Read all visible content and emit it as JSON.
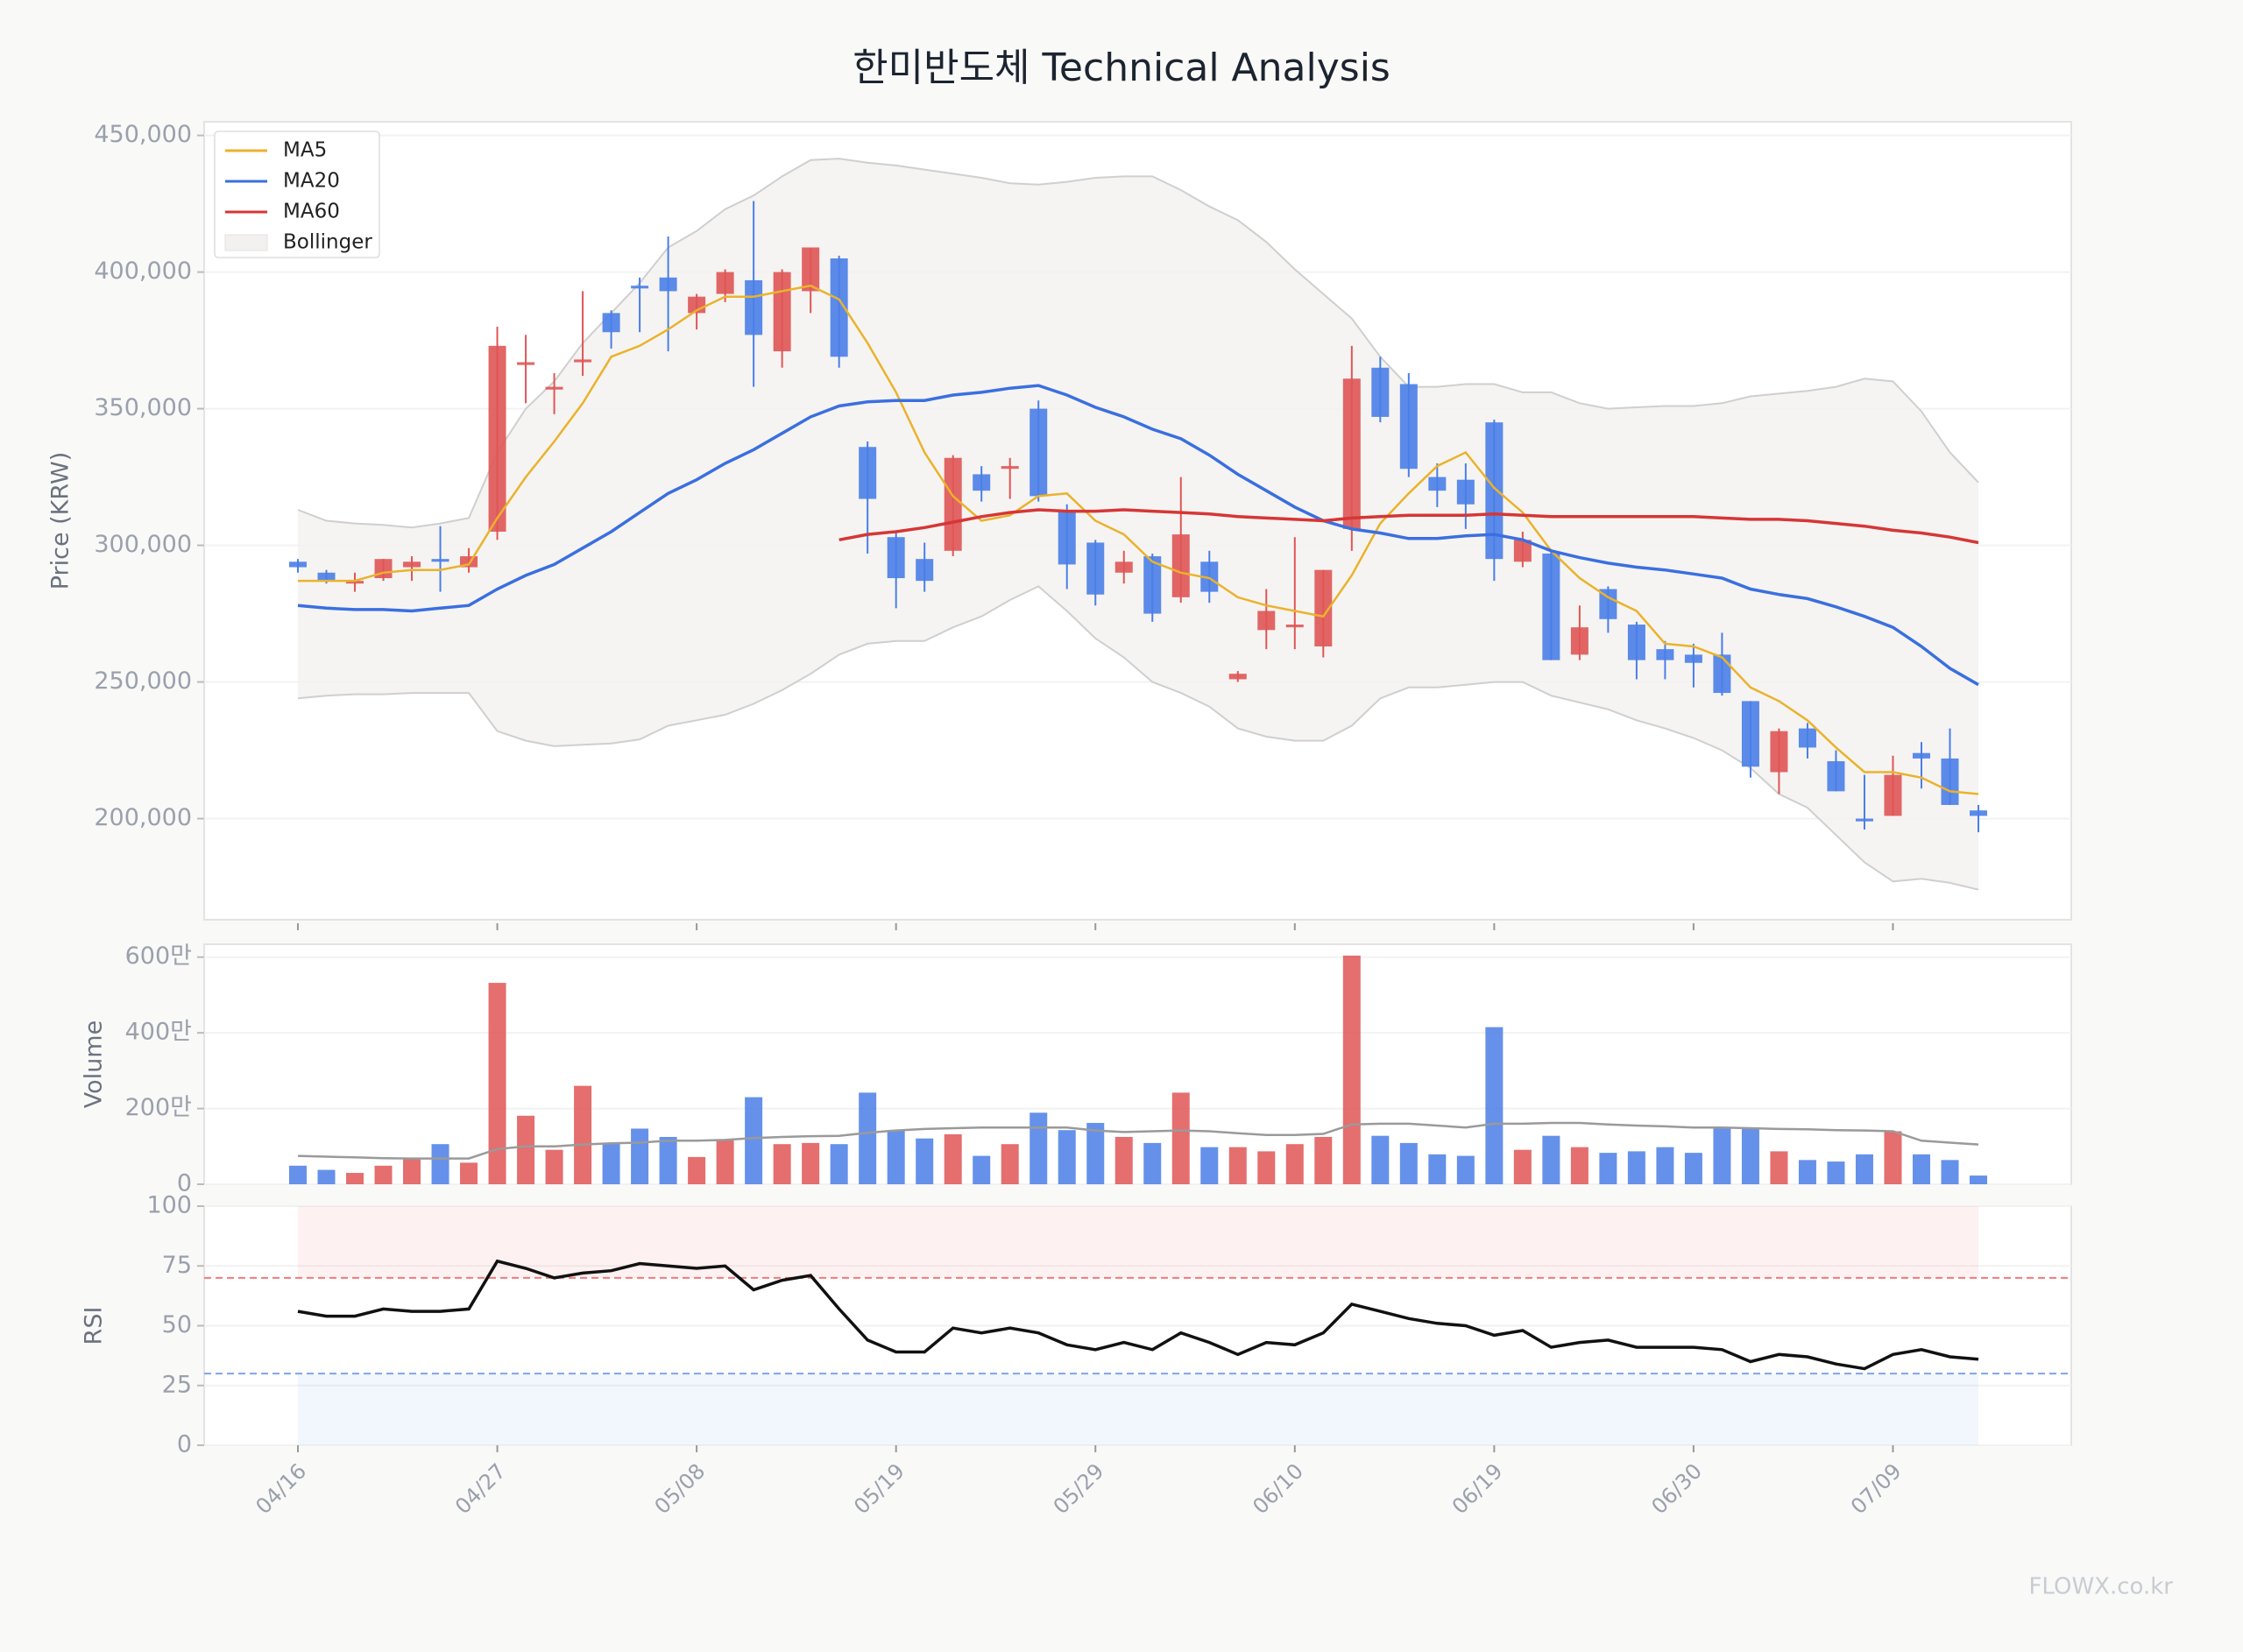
{
  "watermark": "FLOWX.co.kr",
  "chart_data": [
    {
      "type": "candlestick",
      "title": "한미반도체 Technical Analysis",
      "y_label": "Price (KRW)",
      "categories": [
        "04/16",
        null,
        null,
        null,
        null,
        null,
        null,
        "04/27",
        null,
        null,
        null,
        null,
        null,
        null,
        "05/08",
        null,
        null,
        null,
        null,
        null,
        null,
        "05/19",
        null,
        null,
        null,
        null,
        null,
        null,
        "05/29",
        null,
        null,
        null,
        null,
        null,
        null,
        "06/10",
        null,
        null,
        null,
        null,
        null,
        null,
        "06/19",
        null,
        null,
        null,
        null,
        null,
        null,
        "06/30",
        null,
        null,
        null,
        null,
        null,
        null,
        "07/09",
        null,
        null,
        null
      ],
      "open": [
        294000,
        290000,
        286000,
        288000,
        292000,
        295000,
        292000,
        305000,
        366000,
        357000,
        367000,
        385000,
        395000,
        398000,
        385000,
        392000,
        397000,
        371000,
        393000,
        405000,
        336000,
        303000,
        295000,
        298000,
        326000,
        328000,
        350000,
        313000,
        301000,
        290000,
        296000,
        281000,
        294000,
        251000,
        269000,
        270000,
        263000,
        306000,
        365000,
        359000,
        325000,
        324000,
        345000,
        294000,
        297000,
        260000,
        284000,
        271000,
        262000,
        260000,
        260000,
        243000,
        217000,
        233000,
        221000,
        200000,
        201000,
        224000,
        222000,
        203000
      ],
      "close": [
        292000,
        287000,
        287000,
        295000,
        294000,
        294000,
        296000,
        373000,
        367000,
        358000,
        368000,
        378000,
        394000,
        393000,
        391000,
        400000,
        377000,
        400000,
        409000,
        369000,
        317000,
        288000,
        287000,
        332000,
        320000,
        329000,
        318000,
        293000,
        282000,
        294000,
        275000,
        304000,
        283000,
        253000,
        276000,
        271000,
        291000,
        361000,
        347000,
        328000,
        320000,
        315000,
        295000,
        302000,
        258000,
        270000,
        273000,
        258000,
        258000,
        257000,
        246000,
        219000,
        232000,
        226000,
        210000,
        199000,
        216000,
        222000,
        205000,
        201000
      ],
      "high": [
        295000,
        291000,
        290000,
        295000,
        296000,
        307000,
        299000,
        380000,
        377000,
        363000,
        393000,
        386000,
        398000,
        413000,
        392000,
        401000,
        426000,
        401000,
        409000,
        406000,
        338000,
        305000,
        301000,
        333000,
        329000,
        332000,
        353000,
        315000,
        302000,
        298000,
        297000,
        325000,
        298000,
        254000,
        284000,
        303000,
        291000,
        373000,
        369000,
        363000,
        330000,
        330000,
        346000,
        305000,
        298000,
        278000,
        285000,
        272000,
        265000,
        264000,
        268000,
        243000,
        233000,
        235000,
        225000,
        216000,
        223000,
        228000,
        233000,
        205000
      ],
      "low": [
        290000,
        286000,
        283000,
        287000,
        287000,
        283000,
        290000,
        302000,
        352000,
        348000,
        362000,
        372000,
        378000,
        371000,
        379000,
        389000,
        358000,
        365000,
        385000,
        365000,
        297000,
        277000,
        283000,
        296000,
        316000,
        317000,
        316000,
        284000,
        278000,
        286000,
        272000,
        279000,
        279000,
        250000,
        262000,
        262000,
        259000,
        298000,
        345000,
        325000,
        314000,
        306000,
        287000,
        292000,
        258000,
        258000,
        268000,
        251000,
        251000,
        248000,
        245000,
        215000,
        209000,
        222000,
        210000,
        196000,
        201000,
        211000,
        205000,
        195000
      ],
      "up_color": "#e05555",
      "down_color": "#4a7ee8",
      "series": [
        {
          "name": "MA5",
          "color": "#ebb22c",
          "values": [
            287000,
            287000,
            287000,
            290000,
            291000,
            291000,
            293000,
            310000,
            325000,
            338000,
            352000,
            369000,
            373000,
            379000,
            386000,
            391000,
            391000,
            393000,
            395000,
            390000,
            374000,
            356000,
            334000,
            318000,
            309000,
            311000,
            318000,
            319000,
            309000,
            304000,
            294000,
            290000,
            288000,
            281000,
            278000,
            276000,
            274000,
            289000,
            308000,
            319000,
            329000,
            334000,
            321000,
            312000,
            298000,
            288000,
            281000,
            276000,
            264000,
            263000,
            259000,
            248000,
            243000,
            236000,
            226000,
            217000,
            217000,
            215000,
            210000,
            209000
          ]
        },
        {
          "name": "MA20",
          "color": "#3b6fe0",
          "values": [
            278000,
            277000,
            276500,
            276500,
            276000,
            277000,
            278000,
            284000,
            289000,
            293000,
            299000,
            305000,
            312000,
            319000,
            324000,
            330000,
            335000,
            341000,
            347000,
            351000,
            352500,
            353000,
            353000,
            355000,
            356000,
            357500,
            358500,
            355000,
            350500,
            347000,
            342500,
            339000,
            333000,
            326000,
            320000,
            314000,
            309000,
            306000,
            304500,
            302500,
            302500,
            303500,
            304000,
            302000,
            298000,
            295500,
            293500,
            292000,
            291000,
            289500,
            288000,
            284000,
            282000,
            280500,
            277500,
            274000,
            270000,
            263000,
            255000,
            249000
          ]
        },
        {
          "name": "MA60",
          "color": "#d63636",
          "values": [
            null,
            null,
            null,
            null,
            null,
            null,
            null,
            null,
            null,
            null,
            null,
            null,
            null,
            null,
            null,
            null,
            null,
            null,
            null,
            302000,
            304000,
            305000,
            306500,
            308500,
            310500,
            312000,
            313000,
            312500,
            312500,
            313000,
            312500,
            312000,
            311500,
            310500,
            310000,
            309500,
            309000,
            310000,
            310500,
            311000,
            311000,
            311000,
            311500,
            311000,
            310500,
            310500,
            310500,
            310500,
            310500,
            310500,
            310000,
            309500,
            309500,
            309000,
            308000,
            307000,
            305500,
            304500,
            303000,
            301000
          ]
        }
      ],
      "bollinger": {
        "name": "Bollinger",
        "color": "#cfcfcf",
        "fill": "#f3f1ef",
        "upper": [
          313000,
          309000,
          308000,
          307500,
          306500,
          308000,
          310000,
          334000,
          350000,
          360000,
          374000,
          385000,
          396000,
          409000,
          415000,
          423000,
          428000,
          435000,
          441000,
          441500,
          440000,
          439000,
          437500,
          436000,
          434500,
          432500,
          432000,
          433000,
          434500,
          435000,
          435000,
          430000,
          424000,
          419000,
          411000,
          401000,
          392000,
          383000,
          369000,
          358000,
          358000,
          359000,
          359000,
          356000,
          356000,
          352000,
          350000,
          350500,
          351000,
          351000,
          352000,
          354500,
          355500,
          356500,
          358000,
          361000,
          360000,
          349000,
          334000,
          323000
        ],
        "lower": [
          244000,
          245000,
          245500,
          245500,
          246000,
          246000,
          246000,
          232000,
          228500,
          226500,
          227000,
          227500,
          229000,
          234000,
          236000,
          238000,
          242000,
          247000,
          253000,
          260000,
          264000,
          265000,
          265000,
          270000,
          274000,
          280000,
          285000,
          276000,
          266000,
          259000,
          250000,
          246000,
          241000,
          233000,
          230000,
          228500,
          228500,
          234000,
          244000,
          248000,
          248000,
          249000,
          250000,
          250000,
          245000,
          242500,
          240000,
          236000,
          233000,
          229500,
          225000,
          218500,
          209000,
          204000,
          194000,
          184000,
          177000,
          178000,
          176500,
          174000
        ]
      },
      "ylim": [
        163000,
        455000
      ],
      "yticks": [
        {
          "value": 200000,
          "label": "200,000"
        },
        {
          "value": 250000,
          "label": "250,000"
        },
        {
          "value": 300000,
          "label": "300,000"
        },
        {
          "value": 350000,
          "label": "350,000"
        },
        {
          "value": 400000,
          "label": "400,000"
        },
        {
          "value": 450000,
          "label": "450,000"
        }
      ],
      "grid": true,
      "legend": "upper left"
    },
    {
      "type": "bar",
      "y_label": "Volume",
      "values": [
        490000,
        380000,
        300000,
        490000,
        680000,
        1060000,
        570000,
        5320000,
        1810000,
        910000,
        2600000,
        1090000,
        1470000,
        1250000,
        720000,
        1170000,
        2300000,
        1060000,
        1090000,
        1060000,
        2420000,
        1430000,
        1210000,
        1320000,
        750000,
        1060000,
        1890000,
        1430000,
        1620000,
        1250000,
        1090000,
        2420000,
        980000,
        980000,
        870000,
        1060000,
        1250000,
        6040000,
        1280000,
        1090000,
        790000,
        750000,
        4150000,
        910000,
        1280000,
        980000,
        830000,
        870000,
        980000,
        830000,
        1510000,
        1470000,
        870000,
        640000,
        600000,
        790000,
        1400000,
        790000,
        640000,
        230000
      ],
      "ma_values": [
        750000,
        730000,
        710000,
        690000,
        680000,
        680000,
        680000,
        930000,
        1000000,
        1000000,
        1050000,
        1080000,
        1100000,
        1150000,
        1150000,
        1170000,
        1220000,
        1250000,
        1270000,
        1280000,
        1360000,
        1420000,
        1460000,
        1480000,
        1500000,
        1500000,
        1500000,
        1500000,
        1420000,
        1380000,
        1400000,
        1420000,
        1400000,
        1350000,
        1300000,
        1300000,
        1330000,
        1580000,
        1600000,
        1600000,
        1550000,
        1500000,
        1600000,
        1600000,
        1620000,
        1620000,
        1580000,
        1550000,
        1530000,
        1500000,
        1500000,
        1480000,
        1460000,
        1450000,
        1430000,
        1420000,
        1400000,
        1150000,
        1100000,
        1050000
      ],
      "ma_color": "#9a9a9a",
      "ylim": [
        0,
        6340000
      ],
      "yticks": [
        0,
        {
          "value": 2000000,
          "label": "200만"
        },
        {
          "value": 4000000,
          "label": "400만"
        },
        {
          "value": 6000000,
          "label": "600만"
        }
      ],
      "grid": true
    },
    {
      "type": "line",
      "y_label": "RSI",
      "color": "#111111",
      "values": [
        56,
        54,
        54,
        57,
        56,
        56,
        57,
        77,
        74,
        70,
        72,
        73,
        76,
        75,
        74,
        75,
        65,
        69,
        71,
        57,
        44,
        39,
        39,
        49,
        47,
        49,
        47,
        42,
        40,
        43,
        40,
        47,
        43,
        38,
        43,
        42,
        47,
        59,
        56,
        53,
        51,
        50,
        46,
        48,
        41,
        43,
        44,
        41,
        41,
        41,
        40,
        35,
        38,
        37,
        34,
        32,
        38,
        40,
        37,
        36
      ],
      "ylim": [
        0,
        100
      ],
      "yticks": [
        0,
        25,
        50,
        75,
        100
      ],
      "overbought": 70,
      "oversold": 30,
      "overbought_color": "#f07a7a",
      "oversold_color": "#7ea4ea",
      "grid": true
    }
  ]
}
